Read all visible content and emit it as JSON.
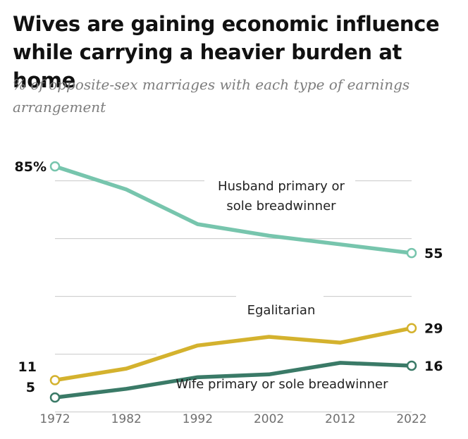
{
  "title": "Wives are gaining economic influence while carrying a heavier burden at home",
  "subtitle": "% of opposite-sex marriages with each type of earnings arrangement",
  "chart_data": {
    "type": "line",
    "title": "Wives are gaining economic influence while carrying a heavier burden at home",
    "subtitle": "% of opposite-sex marriages with each type of earnings arrangement",
    "x": [
      1972,
      1982,
      1992,
      2002,
      2012,
      2022
    ],
    "x_tick_labels": [
      "1972",
      "1982",
      "1992",
      "2002",
      "2012",
      "2022"
    ],
    "ylim": [
      0,
      90
    ],
    "grid": true,
    "legend": "inline",
    "series": [
      {
        "name": "Husband primary or sole breadwinner",
        "label_lines": [
          "Husband primary or",
          "sole breadwinner"
        ],
        "values": [
          85,
          77,
          65,
          61,
          58,
          55
        ],
        "color": "#77c5ad",
        "start_label": "85%",
        "end_label": "55"
      },
      {
        "name": "Egalitarian",
        "label_lines": [
          "Egalitarian"
        ],
        "values": [
          11,
          15,
          23,
          26,
          24,
          29
        ],
        "color": "#d4b22e",
        "start_label": "11",
        "end_label": "29"
      },
      {
        "name": "Wife primary or sole breadwinner",
        "label_lines": [
          "Wife primary or sole breadwinner"
        ],
        "values": [
          5,
          8,
          12,
          13,
          17,
          16
        ],
        "color": "#3a7a67",
        "start_label": "5",
        "end_label": "16"
      }
    ]
  }
}
